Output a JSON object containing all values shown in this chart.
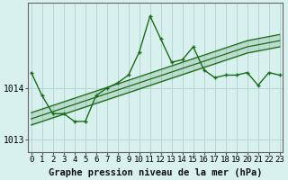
{
  "title": "Graphe pression niveau de la mer (hPa)",
  "bg_color": "#d8f0ee",
  "grid_color": "#b0d4d0",
  "line_color": "#1a6b1a",
  "x_labels": [
    "0",
    "1",
    "2",
    "3",
    "4",
    "5",
    "6",
    "7",
    "8",
    "9",
    "10",
    "11",
    "12",
    "13",
    "14",
    "15",
    "16",
    "17",
    "18",
    "19",
    "20",
    "21",
    "22",
    "23"
  ],
  "main_data": [
    1014.3,
    1013.85,
    1013.5,
    1013.5,
    1013.35,
    1013.35,
    1013.85,
    1014.0,
    1014.1,
    1014.25,
    1014.7,
    1015.4,
    1014.95,
    1014.5,
    1014.55,
    1014.8,
    1014.35,
    1014.2,
    1014.25,
    1014.25,
    1014.3,
    1014.05,
    1014.3,
    1014.25
  ],
  "trend_line1": [
    1013.28,
    1013.35,
    1013.42,
    1013.49,
    1013.56,
    1013.63,
    1013.7,
    1013.77,
    1013.84,
    1013.91,
    1013.98,
    1014.05,
    1014.12,
    1014.19,
    1014.26,
    1014.33,
    1014.4,
    1014.47,
    1014.54,
    1014.61,
    1014.68,
    1014.72,
    1014.76,
    1014.8
  ],
  "trend_line2": [
    1013.4,
    1013.47,
    1013.54,
    1013.61,
    1013.68,
    1013.75,
    1013.82,
    1013.89,
    1013.96,
    1014.03,
    1014.1,
    1014.17,
    1014.24,
    1014.31,
    1014.38,
    1014.45,
    1014.52,
    1014.59,
    1014.66,
    1014.73,
    1014.8,
    1014.84,
    1014.88,
    1014.92
  ],
  "trend_line3": [
    1013.52,
    1013.59,
    1013.66,
    1013.73,
    1013.8,
    1013.87,
    1013.94,
    1014.01,
    1014.08,
    1014.15,
    1014.22,
    1014.29,
    1014.36,
    1014.43,
    1014.5,
    1014.57,
    1014.64,
    1014.71,
    1014.78,
    1014.85,
    1014.92,
    1014.96,
    1015.0,
    1015.04
  ],
  "ylim_min": 1012.75,
  "ylim_max": 1015.65,
  "yticks": [
    1013.0,
    1014.0
  ],
  "ytick_labels": [
    "1013",
    "1014"
  ],
  "title_fontsize": 7.5,
  "tick_fontsize": 6.5
}
